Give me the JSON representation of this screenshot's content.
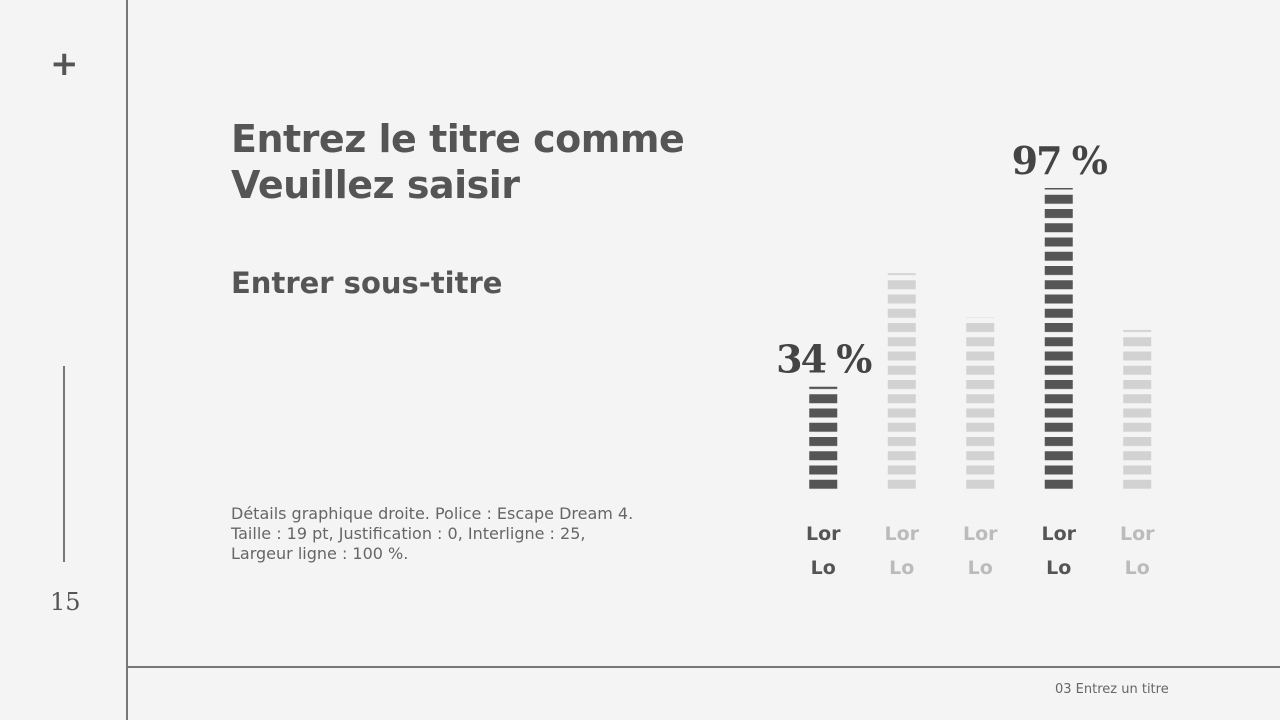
{
  "slide": {
    "marker": "+",
    "page_number": "15",
    "title": [
      "Entrez le titre comme",
      "Veuillez saisir"
    ],
    "subtitle": "Entrer sous-titre",
    "body": "Détails graphique droite. Police : Escape Dream 4. Taille : 19 pt, Justification : 0, Interligne : 25, Largeur ligne : 100 %.",
    "footer": "03 Entrez un titre"
  },
  "chart_data": {
    "type": "bar",
    "categories": [
      "Lor Lo",
      "Lor Lo",
      "Lor Lo",
      "Lor Lo",
      "Lor Lo"
    ],
    "values": [
      34,
      70,
      56,
      97,
      52
    ],
    "value_labels": [
      "34 %",
      null,
      null,
      "97 %",
      null
    ],
    "colors": [
      "#555555",
      "#d2d2d2",
      "#d2d2d2",
      "#555555",
      "#d2d2d2"
    ],
    "ylim": [
      0,
      100
    ]
  }
}
